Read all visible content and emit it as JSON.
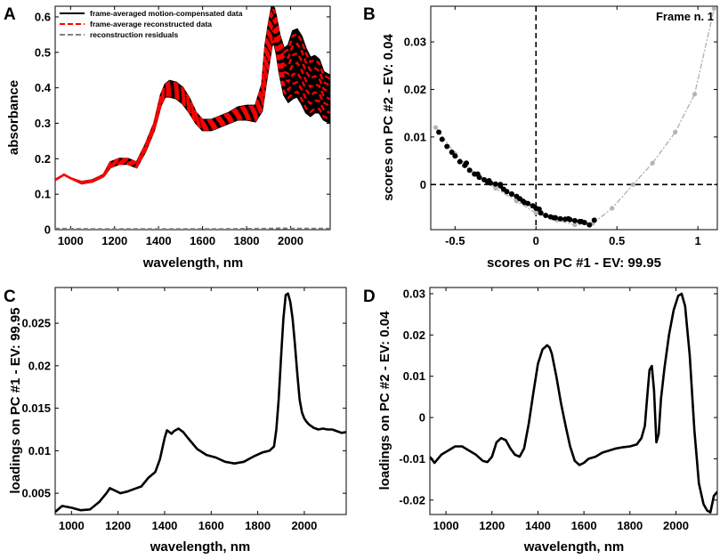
{
  "chart_data": [
    {
      "panel": "A",
      "type": "line",
      "xlabel": "wavelength, nm",
      "ylabel": "absorbance",
      "xlim": [
        930,
        2180
      ],
      "ylim": [
        0,
        0.63
      ],
      "xticks": [
        1000,
        1200,
        1400,
        1600,
        1800,
        2000
      ],
      "yticks": [
        0,
        0.1,
        0.2,
        0.3,
        0.4,
        0.5,
        0.6
      ],
      "ytick_labels": [
        "0",
        "0.1",
        "0.2",
        "0.3",
        "0.4",
        "0.5",
        "0.6"
      ],
      "legend": [
        {
          "label": "frame-averaged motion-compensated data",
          "color": "#000000",
          "style": "solid"
        },
        {
          "label": "frame-average reconstructed data",
          "color": "#ff0000",
          "style": "dashed"
        },
        {
          "label": "reconstruction residuals",
          "color": "#808080",
          "style": "dashed"
        }
      ],
      "series": [
        {
          "name": "frame-averaged motion-compensated data (upper envelope)",
          "color": "#000000",
          "x": [
            930,
            970,
            1000,
            1050,
            1100,
            1150,
            1180,
            1220,
            1260,
            1300,
            1340,
            1380,
            1410,
            1430,
            1450,
            1480,
            1510,
            1540,
            1570,
            1600,
            1640,
            1680,
            1720,
            1760,
            1800,
            1840,
            1870,
            1885,
            1900,
            1915,
            1925,
            1935,
            1950,
            1970,
            1990,
            2010,
            2030,
            2050,
            2070,
            2090,
            2110,
            2130,
            2150,
            2180
          ],
          "y": [
            0.14,
            0.155,
            0.145,
            0.135,
            0.14,
            0.155,
            0.19,
            0.2,
            0.2,
            0.19,
            0.24,
            0.3,
            0.38,
            0.41,
            0.42,
            0.415,
            0.4,
            0.37,
            0.33,
            0.31,
            0.31,
            0.32,
            0.33,
            0.345,
            0.35,
            0.35,
            0.41,
            0.52,
            0.58,
            0.63,
            0.625,
            0.6,
            0.55,
            0.51,
            0.52,
            0.56,
            0.565,
            0.545,
            0.51,
            0.485,
            0.49,
            0.48,
            0.445,
            0.435
          ]
        },
        {
          "name": "frame-averaged motion-compensated data (lower envelope)",
          "color": "#000000",
          "x": [
            930,
            970,
            1000,
            1050,
            1100,
            1150,
            1180,
            1220,
            1260,
            1300,
            1340,
            1380,
            1410,
            1430,
            1450,
            1480,
            1510,
            1540,
            1570,
            1600,
            1640,
            1680,
            1720,
            1760,
            1800,
            1840,
            1870,
            1885,
            1900,
            1915,
            1925,
            1935,
            1950,
            1970,
            1990,
            2010,
            2030,
            2050,
            2070,
            2090,
            2110,
            2130,
            2150,
            2180
          ],
          "y": [
            0.14,
            0.155,
            0.145,
            0.13,
            0.135,
            0.15,
            0.175,
            0.185,
            0.185,
            0.175,
            0.22,
            0.28,
            0.35,
            0.375,
            0.375,
            0.37,
            0.355,
            0.33,
            0.3,
            0.28,
            0.28,
            0.29,
            0.3,
            0.31,
            0.31,
            0.305,
            0.335,
            0.4,
            0.46,
            0.52,
            0.525,
            0.5,
            0.44,
            0.38,
            0.36,
            0.37,
            0.375,
            0.355,
            0.33,
            0.32,
            0.33,
            0.33,
            0.31,
            0.3
          ]
        },
        {
          "name": "frame-average reconstructed data",
          "color": "#ff0000",
          "x": [
            930,
            970,
            1000,
            1050,
            1100,
            1150,
            1180,
            1220,
            1260,
            1300,
            1340,
            1380,
            1410,
            1430,
            1450,
            1480,
            1510,
            1540,
            1570,
            1600,
            1640,
            1680,
            1720,
            1760,
            1800,
            1840,
            1870,
            1885,
            1900,
            1915,
            1925,
            1935,
            1950,
            1970,
            1990,
            2010,
            2030,
            2050,
            2070,
            2090,
            2110,
            2130,
            2150,
            2180
          ],
          "y": [
            0.14,
            0.155,
            0.145,
            0.133,
            0.138,
            0.153,
            0.183,
            0.193,
            0.193,
            0.183,
            0.23,
            0.29,
            0.365,
            0.393,
            0.398,
            0.393,
            0.378,
            0.35,
            0.315,
            0.295,
            0.295,
            0.305,
            0.315,
            0.328,
            0.33,
            0.328,
            0.372,
            0.46,
            0.52,
            0.575,
            0.575,
            0.55,
            0.495,
            0.445,
            0.44,
            0.465,
            0.47,
            0.45,
            0.42,
            0.402,
            0.41,
            0.405,
            0.378,
            0.368
          ]
        },
        {
          "name": "reconstruction residuals",
          "color": "#808080",
          "x": [
            930,
            1100,
            1300,
            1500,
            1700,
            1900,
            1950,
            2000,
            2180
          ],
          "y": [
            0.003,
            0.002,
            0.002,
            0.002,
            0.002,
            0.003,
            0.004,
            0.003,
            0.003
          ]
        }
      ]
    },
    {
      "panel": "B",
      "type": "scatter",
      "xlabel": "scores on PC #1 - EV: 99.95",
      "ylabel": "scores on PC #2 - EV: 0.04",
      "annotation": "Frame n. 1",
      "xlim": [
        -0.65,
        1.12
      ],
      "ylim": [
        -0.0095,
        0.0375
      ],
      "xticks": [
        -0.5,
        0,
        0.5,
        1
      ],
      "xtick_labels": [
        "-0.5",
        "0",
        "0.5",
        "1"
      ],
      "yticks": [
        0,
        0.01,
        0.02,
        0.03
      ],
      "ytick_labels": [
        "0",
        "0.01",
        "0.02",
        "0.03"
      ],
      "series": [
        {
          "name": "scores (all frames)",
          "color": "#000000",
          "x": [
            -0.6,
            -0.58,
            -0.55,
            -0.52,
            -0.5,
            -0.47,
            -0.44,
            -0.41,
            -0.38,
            -0.35,
            -0.32,
            -0.3,
            -0.28,
            -0.25,
            -0.22,
            -0.2,
            -0.18,
            -0.15,
            -0.12,
            -0.1,
            -0.08,
            -0.05,
            -0.02,
            0.0,
            0.03,
            0.06,
            0.09,
            0.12,
            0.15,
            0.18,
            0.21,
            0.24,
            0.27,
            0.3,
            0.33,
            0.36,
            -0.43,
            -0.36,
            -0.29,
            -0.22,
            -0.15,
            -0.07,
            0.02,
            0.11,
            0.2,
            0.28
          ],
          "y": [
            0.011,
            0.0095,
            0.008,
            0.0068,
            0.006,
            0.0048,
            0.004,
            0.003,
            0.0022,
            0.0015,
            0.001,
            0.0006,
            0.0003,
            0.0001,
            -0.0003,
            -0.001,
            -0.0015,
            -0.002,
            -0.0025,
            -0.003,
            -0.0035,
            -0.004,
            -0.0045,
            -0.005,
            -0.006,
            -0.0065,
            -0.0068,
            -0.007,
            -0.0072,
            -0.0073,
            -0.0074,
            -0.0076,
            -0.0078,
            -0.008,
            -0.0085,
            -0.0075,
            0.0045,
            0.0022,
            0.0008,
            0.0,
            -0.002,
            -0.0038,
            -0.0052,
            -0.007,
            -0.0072,
            -0.0078
          ]
        },
        {
          "name": "frame n. 1 trajectory",
          "color": "#b4b4b4",
          "x": [
            -0.62,
            -0.5,
            -0.37,
            -0.25,
            -0.12,
            0.0,
            0.13,
            0.24,
            0.35,
            0.47,
            0.6,
            0.72,
            0.86,
            0.98,
            1.1
          ],
          "y": [
            0.012,
            0.0065,
            0.002,
            -0.0008,
            -0.0035,
            -0.006,
            -0.0075,
            -0.0085,
            -0.0082,
            -0.005,
            0.0,
            0.0045,
            0.011,
            0.019,
            0.037
          ]
        }
      ]
    },
    {
      "panel": "C",
      "type": "line",
      "xlabel": "wavelength, nm",
      "ylabel": "loadings on PC #1 - EV: 99.95",
      "xlim": [
        930,
        2180
      ],
      "ylim": [
        0.0025,
        0.0292
      ],
      "xticks": [
        1000,
        1200,
        1400,
        1600,
        1800,
        2000
      ],
      "yticks": [
        0.005,
        0.01,
        0.015,
        0.02,
        0.025
      ],
      "ytick_labels": [
        "0.005",
        "0.01",
        "0.015",
        "0.02",
        "0.025"
      ],
      "series": [
        {
          "name": "PC #1 loadings",
          "color": "#000000",
          "x": [
            930,
            960,
            1000,
            1040,
            1080,
            1120,
            1150,
            1165,
            1180,
            1210,
            1240,
            1270,
            1300,
            1330,
            1360,
            1380,
            1400,
            1410,
            1420,
            1430,
            1440,
            1460,
            1480,
            1500,
            1540,
            1580,
            1620,
            1660,
            1700,
            1740,
            1780,
            1820,
            1850,
            1870,
            1880,
            1890,
            1900,
            1910,
            1920,
            1930,
            1940,
            1950,
            1960,
            1970,
            1980,
            1990,
            2000,
            2010,
            2020,
            2040,
            2060,
            2080,
            2100,
            2120,
            2140,
            2160,
            2180
          ],
          "y": [
            0.0028,
            0.0035,
            0.0033,
            0.003,
            0.0031,
            0.004,
            0.005,
            0.0056,
            0.0054,
            0.005,
            0.0052,
            0.0055,
            0.0058,
            0.0068,
            0.0075,
            0.009,
            0.0115,
            0.0124,
            0.0122,
            0.012,
            0.0123,
            0.0126,
            0.0122,
            0.0115,
            0.0102,
            0.0095,
            0.0092,
            0.0087,
            0.0085,
            0.0087,
            0.0093,
            0.0098,
            0.01,
            0.0105,
            0.0125,
            0.016,
            0.021,
            0.0255,
            0.0283,
            0.0285,
            0.0275,
            0.0255,
            0.0225,
            0.019,
            0.016,
            0.0145,
            0.0138,
            0.0134,
            0.0131,
            0.0127,
            0.0125,
            0.0126,
            0.0125,
            0.0125,
            0.0123,
            0.0121,
            0.0122
          ]
        }
      ]
    },
    {
      "panel": "D",
      "type": "line",
      "xlabel": "wavelength, nm",
      "ylabel": "loadings on PC #2 - EV: 0.04",
      "xlim": [
        930,
        2180
      ],
      "ylim": [
        -0.0235,
        0.0315
      ],
      "xticks": [
        1000,
        1200,
        1400,
        1600,
        1800,
        2000
      ],
      "yticks": [
        -0.02,
        -0.01,
        0,
        0.01,
        0.02,
        0.03
      ],
      "ytick_labels": [
        "-0.02",
        "-0.01",
        "0",
        "0.01",
        "0.02",
        "0.03"
      ],
      "series": [
        {
          "name": "PC #2 loadings",
          "color": "#000000",
          "x": [
            930,
            950,
            980,
            1010,
            1040,
            1070,
            1100,
            1130,
            1160,
            1180,
            1200,
            1220,
            1240,
            1260,
            1280,
            1300,
            1320,
            1340,
            1360,
            1380,
            1400,
            1420,
            1440,
            1450,
            1460,
            1480,
            1500,
            1520,
            1540,
            1560,
            1580,
            1600,
            1620,
            1650,
            1680,
            1710,
            1740,
            1770,
            1800,
            1830,
            1850,
            1865,
            1875,
            1885,
            1895,
            1905,
            1915,
            1925,
            1935,
            1950,
            1970,
            1990,
            2010,
            2025,
            2040,
            2060,
            2080,
            2100,
            2120,
            2135,
            2150,
            2165,
            2180
          ],
          "y": [
            -0.0095,
            -0.011,
            -0.009,
            -0.008,
            -0.007,
            -0.007,
            -0.008,
            -0.009,
            -0.0105,
            -0.0108,
            -0.0095,
            -0.006,
            -0.005,
            -0.0055,
            -0.0075,
            -0.009,
            -0.0095,
            -0.0075,
            -0.0015,
            0.006,
            0.013,
            0.0165,
            0.0175,
            0.017,
            0.0155,
            0.01,
            0.0035,
            -0.002,
            -0.007,
            -0.0105,
            -0.0115,
            -0.011,
            -0.01,
            -0.0095,
            -0.0085,
            -0.008,
            -0.0075,
            -0.0072,
            -0.007,
            -0.0065,
            -0.005,
            -0.002,
            0.005,
            0.0115,
            0.0125,
            0.0065,
            -0.006,
            -0.004,
            0.0045,
            0.012,
            0.02,
            0.026,
            0.0295,
            0.03,
            0.027,
            0.015,
            -0.003,
            -0.016,
            -0.021,
            -0.0225,
            -0.023,
            -0.019,
            -0.018
          ]
        }
      ]
    }
  ],
  "panels": [
    {
      "label": "A"
    },
    {
      "label": "B"
    },
    {
      "label": "C"
    },
    {
      "label": "D"
    }
  ]
}
